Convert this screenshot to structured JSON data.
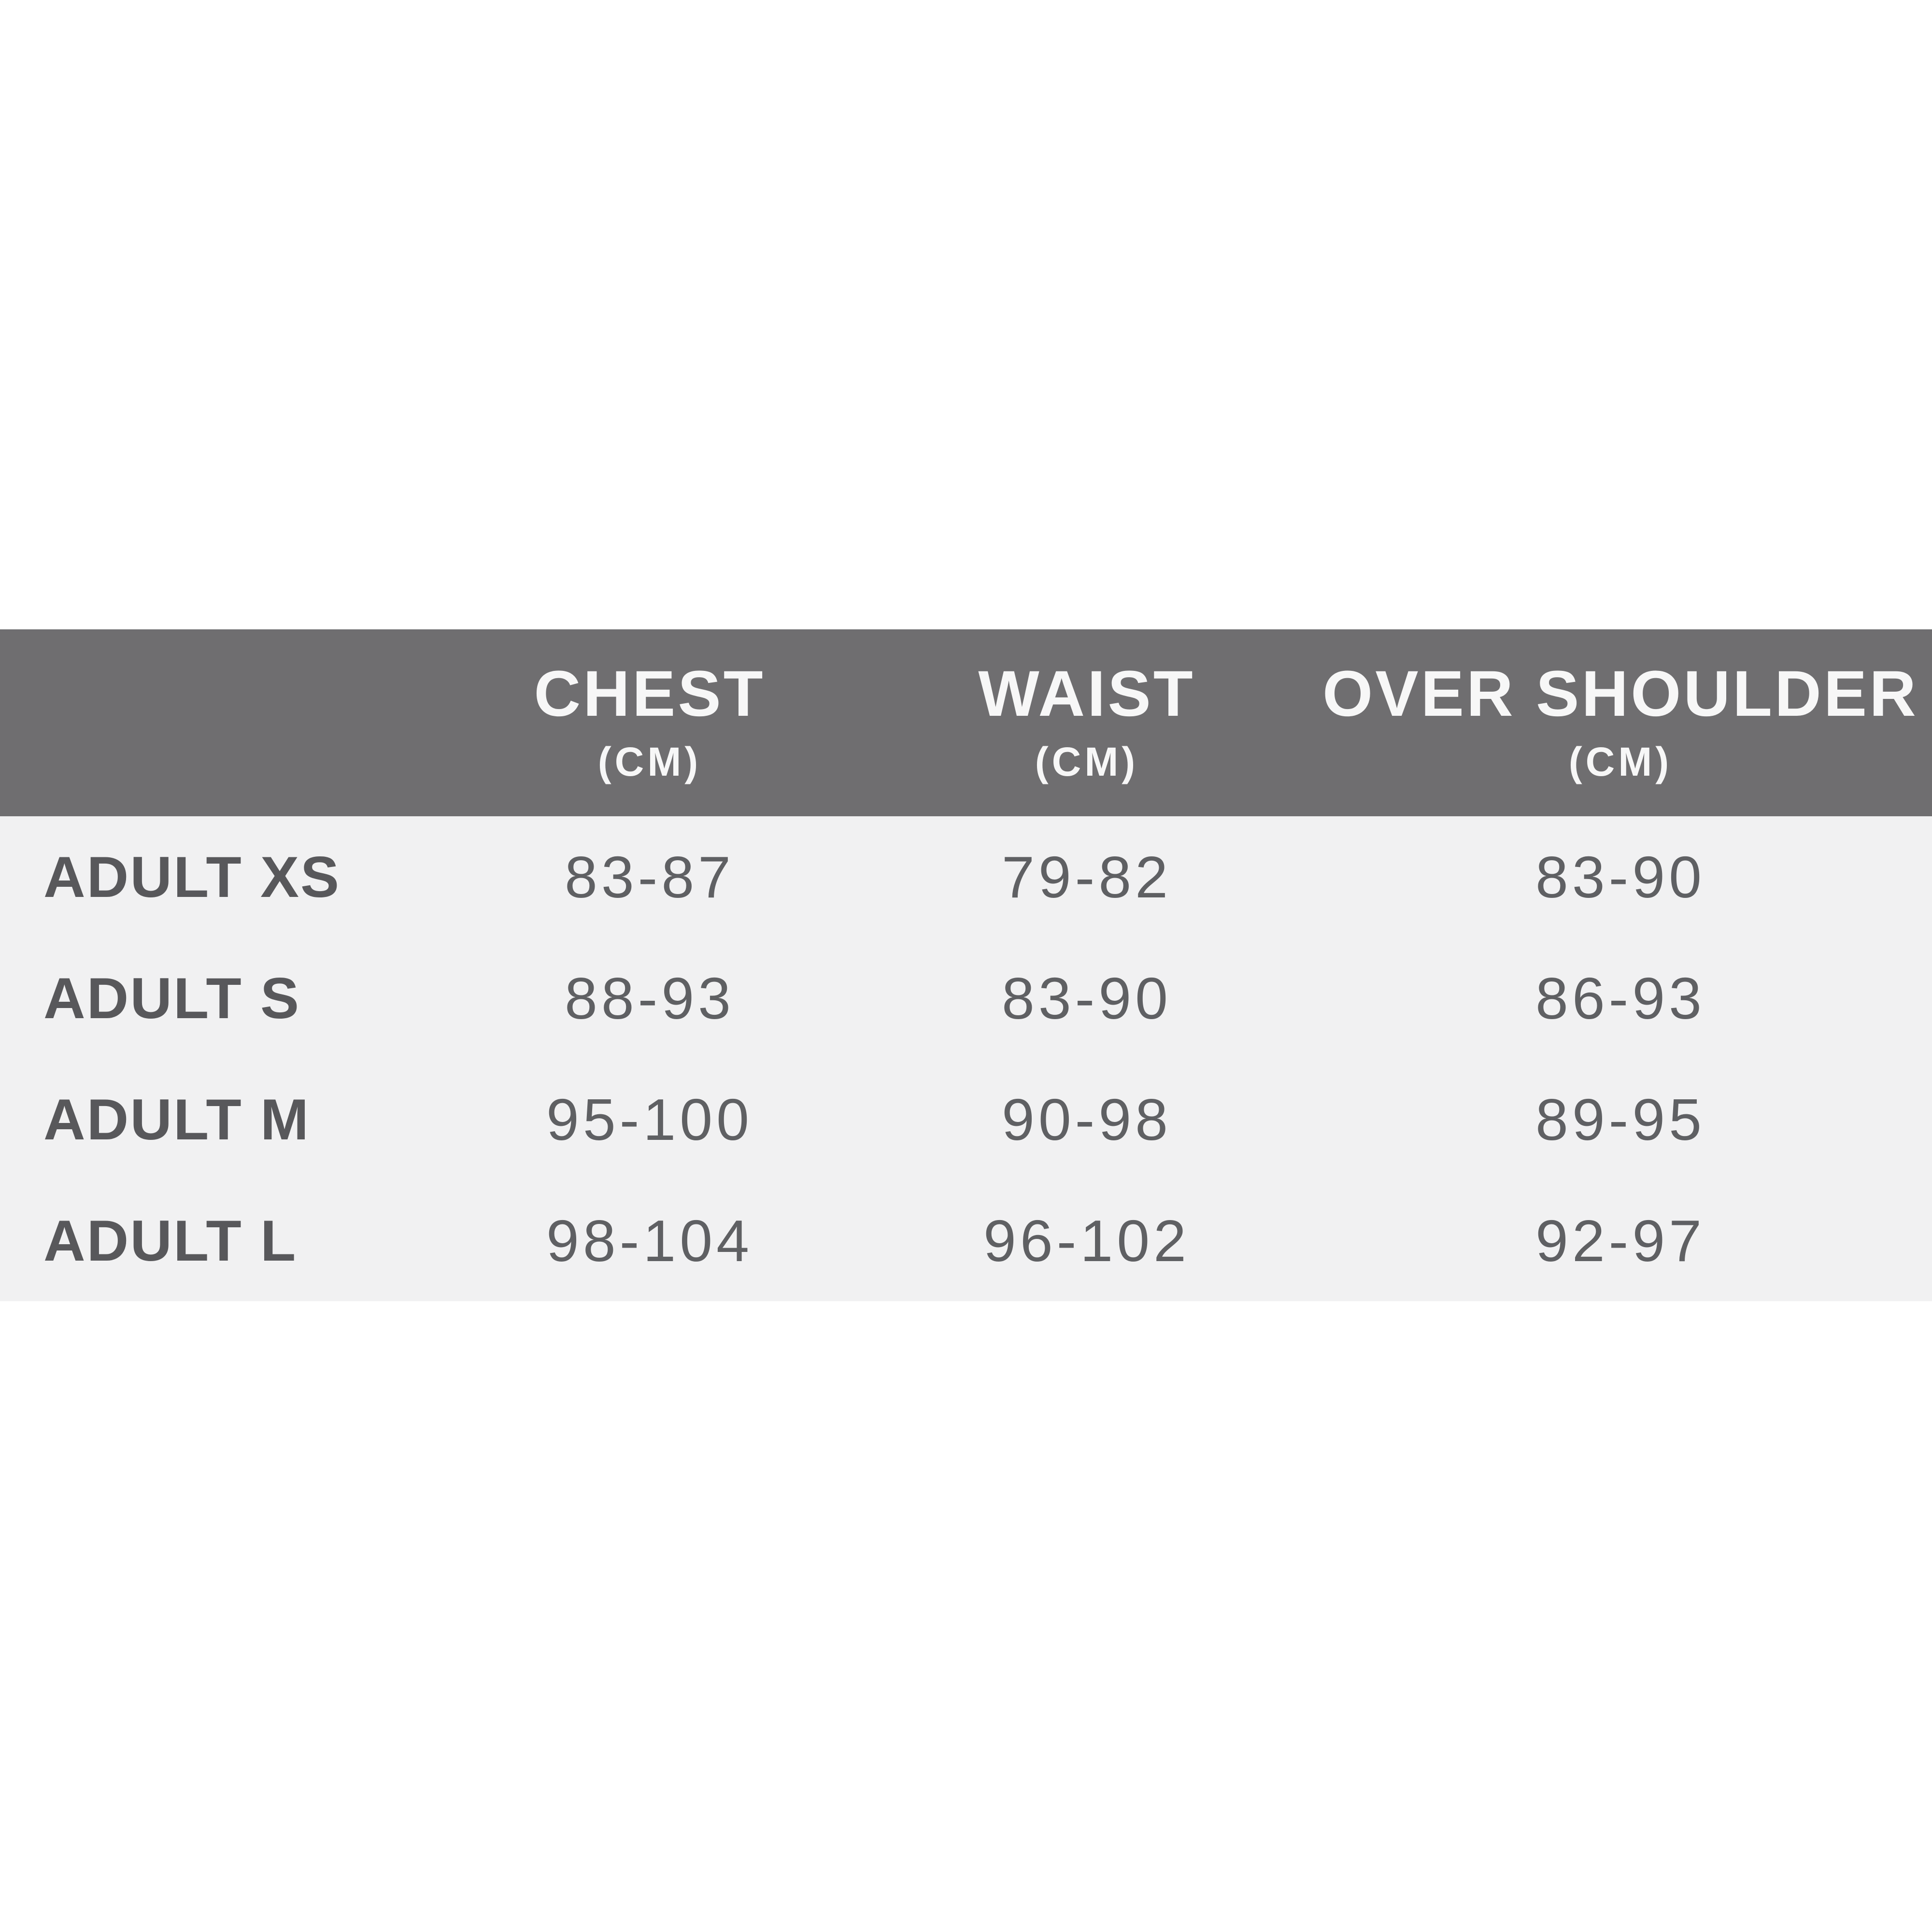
{
  "chart_data": {
    "type": "table",
    "columns": [
      {
        "label": "CHEST",
        "unit": "(CM)"
      },
      {
        "label": "WAIST",
        "unit": "(CM)"
      },
      {
        "label": "OVER SHOULDER",
        "unit": "(CM)"
      }
    ],
    "row_header": [
      "ADULT XS",
      "ADULT S",
      "ADULT M",
      "ADULT L"
    ],
    "rows": [
      [
        "83-87",
        "79-82",
        "83-90"
      ],
      [
        "88-93",
        "83-90",
        "86-93"
      ],
      [
        "95-100",
        "90-98",
        "89-95"
      ],
      [
        "98-104",
        "96-102",
        "92-97"
      ]
    ]
  },
  "colors": {
    "header_bg": "#6f6e70",
    "header_text": "#f7f7f7",
    "body_bg": "#f1f1f2",
    "size_label_text": "#58585b",
    "value_text": "#5f6063",
    "page_bg": "#ffffff"
  }
}
